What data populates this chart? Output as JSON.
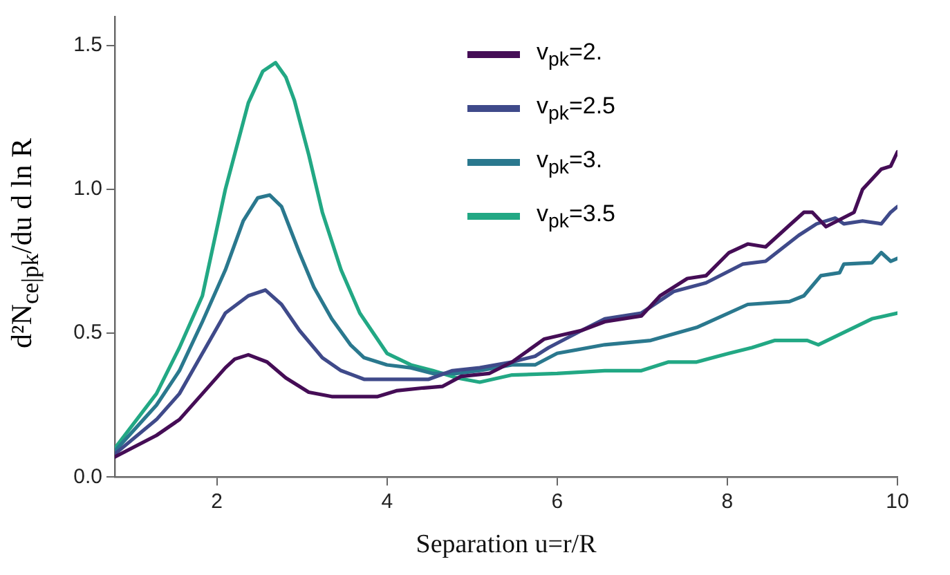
{
  "chart_data": {
    "type": "line",
    "xlabel": "Separation u=r/R",
    "ylabel": "d²N$_{ce|pk}$/du d ln R",
    "xlim": [
      0.8,
      10
    ],
    "xticks": [
      2,
      4,
      6,
      8,
      10
    ],
    "ylim": [
      0,
      1.6
    ],
    "yticks": [
      {
        "value": 0,
        "label": "0.0"
      },
      {
        "value": 0.5,
        "label": "0.5"
      },
      {
        "value": 1,
        "label": "1.0"
      },
      {
        "value": 1.5,
        "label": "1.5"
      }
    ],
    "grid": false,
    "legend": "top right",
    "marker": "none",
    "line_style": "solid",
    "series": [
      {
        "name": "v$_{pk}$=2.",
        "color": "#450d56",
        "x": [
          0.8,
          1.29,
          1.56,
          1.83,
          2.1,
          2.21,
          2.37,
          2.59,
          2.81,
          3.08,
          3.35,
          3.68,
          3.89,
          4.11,
          4.43,
          4.65,
          4.87,
          5.2,
          5.47,
          5.85,
          6.29,
          6.56,
          6.99,
          7.21,
          7.53,
          7.75,
          8.02,
          8.24,
          8.45,
          8.73,
          8.9,
          9.0,
          9.16,
          9.49,
          9.59,
          9.81,
          9.92,
          10
        ],
        "values": [
          0.07,
          0.145,
          0.2,
          0.29,
          0.38,
          0.41,
          0.425,
          0.4,
          0.345,
          0.295,
          0.28,
          0.28,
          0.28,
          0.3,
          0.31,
          0.315,
          0.35,
          0.36,
          0.4,
          0.48,
          0.51,
          0.54,
          0.56,
          0.63,
          0.69,
          0.7,
          0.78,
          0.81,
          0.8,
          0.875,
          0.92,
          0.92,
          0.87,
          0.92,
          1.0,
          1.07,
          1.08,
          1.13
        ]
      },
      {
        "name": "v$_{pk}$=2.5",
        "color": "#3f4a8a",
        "x": [
          0.8,
          1.29,
          1.56,
          1.83,
          2.1,
          2.37,
          2.57,
          2.76,
          2.97,
          3.24,
          3.46,
          3.73,
          4.0,
          4.28,
          4.49,
          4.77,
          5.09,
          5.47,
          5.74,
          5.9,
          6.29,
          6.56,
          6.99,
          7.37,
          7.75,
          8.18,
          8.45,
          8.84,
          9.05,
          9.27,
          9.37,
          9.59,
          9.81,
          9.92,
          10
        ],
        "values": [
          0.08,
          0.2,
          0.29,
          0.43,
          0.57,
          0.63,
          0.65,
          0.6,
          0.51,
          0.415,
          0.37,
          0.34,
          0.34,
          0.34,
          0.34,
          0.37,
          0.38,
          0.4,
          0.42,
          0.45,
          0.51,
          0.55,
          0.57,
          0.645,
          0.675,
          0.74,
          0.75,
          0.84,
          0.88,
          0.9,
          0.88,
          0.89,
          0.88,
          0.92,
          0.94
        ]
      },
      {
        "name": "v$_{pk}$=3.",
        "color": "#2a788e",
        "x": [
          0.8,
          1.29,
          1.56,
          1.83,
          2.1,
          2.31,
          2.48,
          2.62,
          2.76,
          2.97,
          3.14,
          3.35,
          3.57,
          3.73,
          4.0,
          4.28,
          4.54,
          4.82,
          5.09,
          5.47,
          5.74,
          6.0,
          6.56,
          7.1,
          7.64,
          8.24,
          8.73,
          8.9,
          9.1,
          9.32,
          9.37,
          9.7,
          9.81,
          9.92,
          10
        ],
        "values": [
          0.09,
          0.25,
          0.37,
          0.54,
          0.72,
          0.89,
          0.97,
          0.98,
          0.94,
          0.78,
          0.66,
          0.55,
          0.46,
          0.415,
          0.39,
          0.38,
          0.36,
          0.36,
          0.37,
          0.39,
          0.39,
          0.43,
          0.46,
          0.475,
          0.52,
          0.6,
          0.61,
          0.63,
          0.7,
          0.71,
          0.74,
          0.745,
          0.78,
          0.75,
          0.76
        ]
      },
      {
        "name": "v$_{pk}$=3.5",
        "color": "#22a884",
        "x": [
          0.8,
          1.29,
          1.56,
          1.83,
          2.1,
          2.37,
          2.54,
          2.69,
          2.81,
          2.91,
          3.08,
          3.24,
          3.46,
          3.68,
          4.0,
          4.28,
          4.54,
          4.82,
          5.09,
          5.47,
          6.0,
          6.56,
          6.99,
          7.31,
          7.64,
          8.02,
          8.29,
          8.56,
          8.94,
          9.07,
          9.49,
          9.7,
          10
        ],
        "values": [
          0.1,
          0.29,
          0.45,
          0.63,
          1.0,
          1.3,
          1.41,
          1.44,
          1.39,
          1.31,
          1.12,
          0.92,
          0.72,
          0.57,
          0.43,
          0.39,
          0.37,
          0.345,
          0.33,
          0.355,
          0.36,
          0.37,
          0.37,
          0.4,
          0.4,
          0.43,
          0.45,
          0.475,
          0.475,
          0.46,
          0.52,
          0.55,
          0.57
        ]
      }
    ]
  }
}
